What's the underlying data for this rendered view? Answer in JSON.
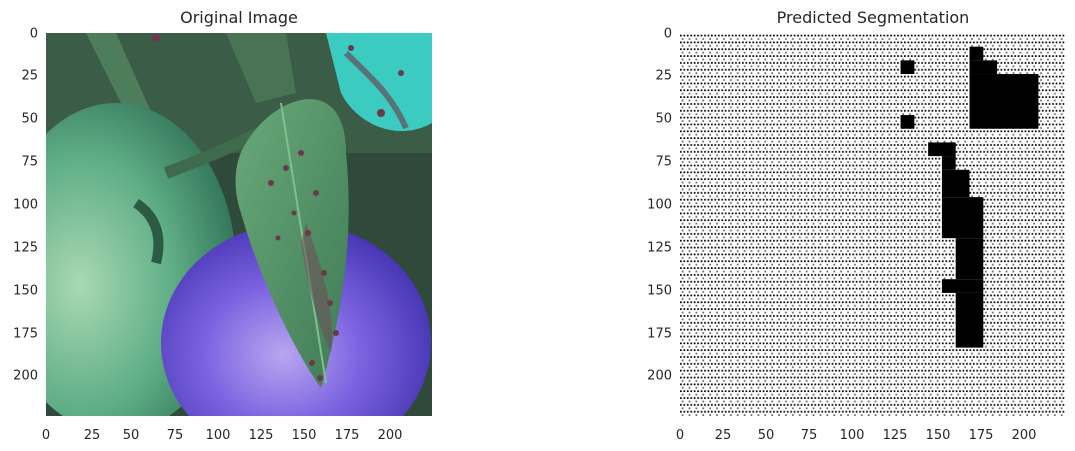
{
  "chart_data": [
    {
      "type": "image",
      "title": "Original Image",
      "x_ticks": [
        0,
        25,
        50,
        75,
        100,
        125,
        150,
        175,
        200
      ],
      "y_ticks": [
        0,
        25,
        50,
        75,
        100,
        125,
        150,
        175,
        200
      ],
      "xlim": [
        0,
        224
      ],
      "ylim": [
        224,
        0
      ],
      "grid": false,
      "colors": {
        "leaf": "#4e8a5e",
        "tomato_green": "#6fbf93",
        "tomato_purple": "#6a50d8",
        "background": "#2f4a3a",
        "spots": "#6b3a4a",
        "cyan_lesion": "#3ccbc0"
      }
    },
    {
      "type": "heatmap",
      "title": "Predicted Segmentation",
      "x_ticks": [
        0,
        25,
        50,
        75,
        100,
        125,
        150,
        175,
        200
      ],
      "y_ticks": [
        0,
        25,
        50,
        75,
        100,
        125,
        150,
        175,
        200
      ],
      "xlim": [
        0,
        224
      ],
      "ylim": [
        224,
        0
      ],
      "grid": false,
      "cell_size": 8,
      "colors": {
        "background": "#ffffff",
        "mask": "#000000",
        "dots": "#000000"
      },
      "mask_blocks": [
        {
          "x": [
            128,
            136
          ],
          "y": [
            16,
            24
          ]
        },
        {
          "x": [
            128,
            136
          ],
          "y": [
            48,
            56
          ]
        },
        {
          "x": [
            168,
            176
          ],
          "y": [
            8,
            16
          ]
        },
        {
          "x": [
            168,
            184
          ],
          "y": [
            16,
            24
          ]
        },
        {
          "x": [
            168,
            208
          ],
          "y": [
            24,
            56
          ]
        },
        {
          "x": [
            144,
            160
          ],
          "y": [
            64,
            72
          ]
        },
        {
          "x": [
            152,
            160
          ],
          "y": [
            72,
            80
          ]
        },
        {
          "x": [
            152,
            168
          ],
          "y": [
            80,
            96
          ]
        },
        {
          "x": [
            152,
            176
          ],
          "y": [
            96,
            120
          ]
        },
        {
          "x": [
            160,
            176
          ],
          "y": [
            120,
            144
          ]
        },
        {
          "x": [
            152,
            176
          ],
          "y": [
            144,
            152
          ]
        },
        {
          "x": [
            160,
            176
          ],
          "y": [
            152,
            184
          ]
        }
      ]
    }
  ]
}
